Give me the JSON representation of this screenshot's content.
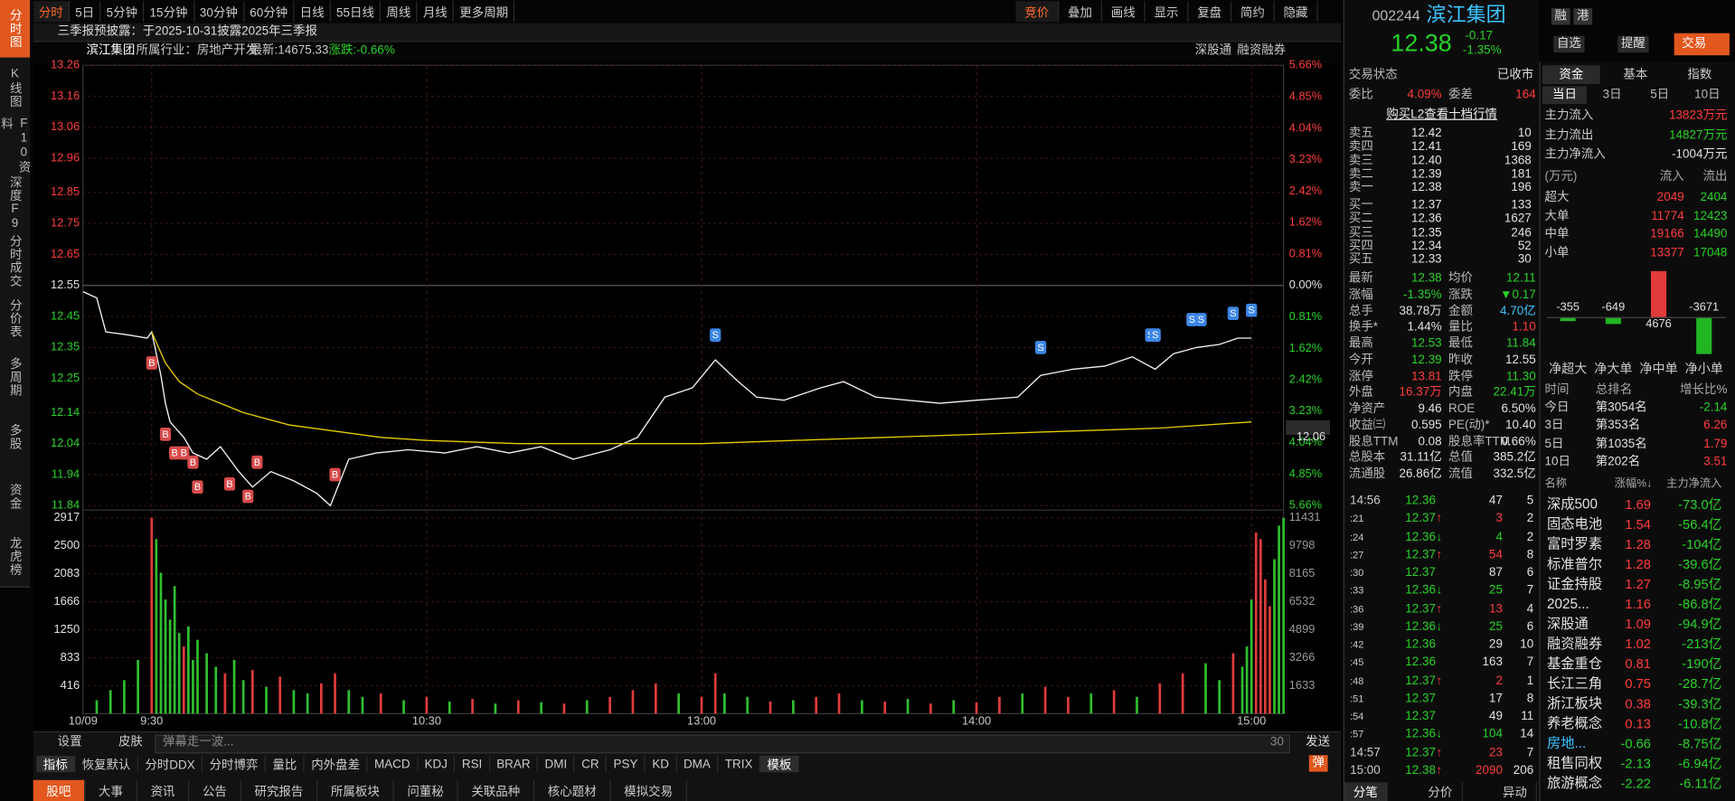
{
  "left_tabs": [
    "分时图",
    "K线图",
    "F10资料",
    "深度F9",
    "分时成交",
    "分价表",
    "多周期",
    "多股",
    "资金",
    "龙虎榜"
  ],
  "toolbar": {
    "periods": [
      "分时",
      "5日",
      "5分钟",
      "15分钟",
      "30分钟",
      "60分钟",
      "日线",
      "55日线",
      "周线",
      "月线",
      "更多周期"
    ],
    "tools": [
      "竞价",
      "叠加",
      "画线",
      "显示",
      "复盘",
      "简约",
      "隐藏"
    ]
  },
  "notice": "三季报预披露：于2025-10-31披露2025年三季报",
  "info": {
    "name": "滨江集团",
    "industry": "所属行业：房地产开发",
    "latest": "最新:14675.33",
    "change": "涨跌:-0.66%",
    "tags": [
      "深股通",
      "融资融券"
    ]
  },
  "chart_data": [
    {
      "type": "line",
      "xlim": [
        -15,
        247
      ],
      "xticks": [
        {
          "value": -15,
          "label": "10/09"
        },
        {
          "value": 0,
          "label": "9:30"
        },
        {
          "value": 60,
          "label": "10:30"
        },
        {
          "value": 120,
          "label": "13:00"
        },
        {
          "value": 180,
          "label": "14:00"
        },
        {
          "value": 240,
          "label": "15:00"
        }
      ],
      "ylim": [
        11.84,
        13.26
      ],
      "yticks": [
        13.26,
        13.16,
        13.06,
        12.96,
        12.85,
        12.75,
        12.65,
        12.55,
        12.45,
        12.35,
        12.25,
        12.14,
        12.04,
        11.94,
        11.84
      ],
      "y2lim": [
        -5.66,
        5.66
      ],
      "y2ticks": [
        {
          "value": 5.66,
          "label": "5.66%"
        },
        {
          "value": 4.85,
          "label": "4.85%"
        },
        {
          "value": 4.04,
          "label": "4.04%"
        },
        {
          "value": 3.23,
          "label": "3.23%"
        },
        {
          "value": 2.42,
          "label": "2.42%"
        },
        {
          "value": 1.62,
          "label": "1.62%"
        },
        {
          "value": 0.81,
          "label": "0.81%"
        },
        {
          "value": 0,
          "label": "0.00%"
        },
        {
          "value": -0.81,
          "label": "0.81%"
        },
        {
          "value": -1.62,
          "label": "1.62%"
        },
        {
          "value": -2.42,
          "label": "2.42%"
        },
        {
          "value": -3.23,
          "label": "3.23%"
        },
        {
          "value": -4.04,
          "label": "4.04%"
        },
        {
          "value": -4.85,
          "label": "4.85%"
        },
        {
          "value": -5.66,
          "label": "5.66%"
        }
      ],
      "grid": true,
      "series": [
        {
          "color": "#f2f2f2",
          "x": [
            -15,
            -12,
            -10,
            -5,
            -1,
            0,
            2,
            3,
            4,
            7,
            9,
            12,
            15,
            19,
            22,
            26,
            31,
            36,
            39,
            43,
            49,
            56,
            64,
            71,
            78,
            85,
            92,
            100,
            106,
            112,
            118,
            123,
            128,
            132,
            138,
            146,
            151,
            158,
            165,
            172,
            180,
            189,
            194,
            201,
            208,
            214,
            219,
            223,
            228,
            233,
            237,
            240
          ],
          "values": [
            12.53,
            12.51,
            12.4,
            12.39,
            12.38,
            12.4,
            12.26,
            12.17,
            12.11,
            12.06,
            12.01,
            11.99,
            12.03,
            11.95,
            11.9,
            11.95,
            11.92,
            11.88,
            11.84,
            11.99,
            12.01,
            12.02,
            12.01,
            12.03,
            12.01,
            12.03,
            11.99,
            12.02,
            12.06,
            12.19,
            12.22,
            12.31,
            12.24,
            12.19,
            12.18,
            12.22,
            12.24,
            12.19,
            12.18,
            12.17,
            12.18,
            12.19,
            12.26,
            12.28,
            12.29,
            12.32,
            12.28,
            12.33,
            12.35,
            12.36,
            12.38,
            12.38
          ]
        },
        {
          "color": "#e6cc00",
          "x": [
            0,
            3,
            6,
            10,
            15,
            20,
            30,
            40,
            50,
            60,
            80,
            100,
            120,
            140,
            160,
            180,
            200,
            220,
            240
          ],
          "values": [
            12.4,
            12.3,
            12.24,
            12.2,
            12.17,
            12.14,
            12.1,
            12.08,
            12.06,
            12.05,
            12.04,
            12.04,
            12.04,
            12.05,
            12.06,
            12.07,
            12.08,
            12.09,
            12.11
          ]
        }
      ],
      "avg_marker": 12.06,
      "markers": [
        {
          "x": 0,
          "y": 12.3,
          "label": "B",
          "color": "#d84b4b"
        },
        {
          "x": 3,
          "y": 12.07,
          "label": "B",
          "color": "#d84b4b"
        },
        {
          "x": 5,
          "y": 12.01,
          "label": "B",
          "color": "#d84b4b"
        },
        {
          "x": 7,
          "y": 12.01,
          "label": "B",
          "color": "#d84b4b"
        },
        {
          "x": 9,
          "y": 11.98,
          "label": "B",
          "color": "#d84b4b"
        },
        {
          "x": 10,
          "y": 11.9,
          "label": "B",
          "color": "#d84b4b"
        },
        {
          "x": 17,
          "y": 11.91,
          "label": "B",
          "color": "#d84b4b"
        },
        {
          "x": 21,
          "y": 11.87,
          "label": "B",
          "color": "#d84b4b"
        },
        {
          "x": 23,
          "y": 11.98,
          "label": "B",
          "color": "#d84b4b"
        },
        {
          "x": 40,
          "y": 11.94,
          "label": "B",
          "color": "#d84b4b"
        },
        {
          "x": 123,
          "y": 12.39,
          "label": "S",
          "color": "#3c86e6"
        },
        {
          "x": 194,
          "y": 12.35,
          "label": "S",
          "color": "#3c86e6"
        },
        {
          "x": 218,
          "y": 12.39,
          "label": "S",
          "color": "#3c86e6"
        },
        {
          "x": 219,
          "y": 12.39,
          "label": "S",
          "color": "#3c86e6"
        },
        {
          "x": 227,
          "y": 12.44,
          "label": "S",
          "color": "#3c86e6"
        },
        {
          "x": 229,
          "y": 12.44,
          "label": "S",
          "color": "#3c86e6"
        },
        {
          "x": 236,
          "y": 12.46,
          "label": "S",
          "color": "#3c86e6"
        },
        {
          "x": 240,
          "y": 12.47,
          "label": "S",
          "color": "#3c86e6"
        }
      ]
    },
    {
      "type": "bar",
      "ylim": [
        0,
        2917
      ],
      "yticks": [
        2917,
        2500,
        2083,
        1666,
        1250,
        833,
        416
      ],
      "y2lim": [
        0,
        11431
      ],
      "y2ticks": [
        11431,
        9798,
        8165,
        6532,
        4899,
        3266,
        1633
      ],
      "x": [
        -12,
        -9,
        -6,
        -3,
        0,
        1,
        2,
        3,
        4,
        5,
        6,
        7,
        8,
        9,
        10,
        12,
        14,
        16,
        18,
        20,
        22,
        25,
        28,
        31,
        34,
        37,
        40,
        43,
        46,
        50,
        55,
        60,
        65,
        70,
        75,
        80,
        85,
        90,
        95,
        100,
        105,
        110,
        115,
        120,
        123,
        125,
        130,
        135,
        140,
        145,
        150,
        155,
        160,
        165,
        170,
        175,
        180,
        185,
        190,
        195,
        200,
        205,
        210,
        215,
        220,
        225,
        230,
        233,
        236,
        238,
        239,
        240,
        241,
        242,
        243,
        244,
        245,
        246,
        247
      ],
      "values": [
        200,
        350,
        500,
        800,
        2917,
        2600,
        2100,
        1700,
        1400,
        1900,
        1200,
        1000,
        1300,
        800,
        1100,
        900,
        700,
        600,
        800,
        500,
        650,
        400,
        550,
        350,
        300,
        450,
        600,
        350,
        250,
        300,
        200,
        250,
        180,
        220,
        150,
        200,
        170,
        150,
        200,
        250,
        350,
        450,
        300,
        250,
        600,
        300,
        250,
        180,
        200,
        250,
        300,
        200,
        180,
        220,
        150,
        200,
        170,
        250,
        300,
        400,
        250,
        300,
        350,
        250,
        450,
        600,
        750,
        500,
        900,
        700,
        1000,
        1700,
        2700,
        2600,
        2000,
        1600,
        2300,
        2800,
        2917
      ],
      "colors": [
        "#2fbf2f",
        "#2fbf2f",
        "#2fbf2f",
        "#2fbf2f",
        "#e03c3c",
        "#2fbf2f",
        "#2fbf2f",
        "#2fbf2f",
        "#2fbf2f",
        "#2fbf2f",
        "#2fbf2f",
        "#e03c3c",
        "#2fbf2f",
        "#2fbf2f",
        "#2fbf2f",
        "#2fbf2f",
        "#2fbf2f",
        "#e03c3c",
        "#2fbf2f",
        "#2fbf2f",
        "#e03c3c",
        "#2fbf2f",
        "#e03c3c",
        "#2fbf2f",
        "#2fbf2f",
        "#e03c3c",
        "#e03c3c",
        "#2fbf2f",
        "#2fbf2f",
        "#e03c3c",
        "#2fbf2f",
        "#e03c3c",
        "#2fbf2f",
        "#e03c3c",
        "#2fbf2f",
        "#e03c3c",
        "#2fbf2f",
        "#e03c3c",
        "#2fbf2f",
        "#e03c3c",
        "#e03c3c",
        "#e03c3c",
        "#2fbf2f",
        "#e03c3c",
        "#e03c3c",
        "#2fbf2f",
        "#2fbf2f",
        "#e03c3c",
        "#2fbf2f",
        "#e03c3c",
        "#e03c3c",
        "#2fbf2f",
        "#e03c3c",
        "#2fbf2f",
        "#e03c3c",
        "#2fbf2f",
        "#e03c3c",
        "#e03c3c",
        "#2fbf2f",
        "#e03c3c",
        "#e03c3c",
        "#2fbf2f",
        "#e03c3c",
        "#2fbf2f",
        "#e03c3c",
        "#e03c3c",
        "#2fbf2f",
        "#2fbf2f",
        "#e03c3c",
        "#2fbf2f",
        "#2fbf2f",
        "#2fbf2f",
        "#e03c3c",
        "#e03c3c",
        "#e03c3c",
        "#e03c3c",
        "#2fbf2f",
        "#2fbf2f",
        "#2fbf2f"
      ]
    },
    {
      "type": "bar",
      "categories": [
        "净超大",
        "净大单",
        "净中单",
        "净小单"
      ],
      "values": [
        -355,
        -649,
        4676,
        -3671
      ],
      "colors": {
        "up": "#e23b3b",
        "down": "#22b522"
      }
    }
  ],
  "bottom_bar": {
    "settings": "设置",
    "skin": "皮肤",
    "placeholder": "弹幕走一波...",
    "count": "30",
    "send": "发送"
  },
  "indicators": [
    "指标",
    "恢复默认",
    "分时DDX",
    "分时博弈",
    "量比",
    "内外盘差",
    "MACD",
    "KDJ",
    "RSI",
    "BRAR",
    "DMI",
    "CR",
    "PSY",
    "KD",
    "DMA",
    "TRIX",
    "模板"
  ],
  "danmu_toggle": "弹",
  "bottom_tabs": [
    "股吧",
    "大事",
    "资讯",
    "公告",
    "研究报告",
    "所属板块",
    "问董秘",
    "关联品种",
    "核心题材",
    "模拟交易"
  ],
  "quote": {
    "code": "002244",
    "name": "滨江集团",
    "badges": [
      "融",
      "港"
    ],
    "price": "12.38",
    "change": "-0.17",
    "pct": "-1.35%",
    "buttons": [
      "自选",
      "提醒",
      "交易"
    ],
    "status_label": "交易状态",
    "status": "已收市",
    "wb_label": "委比",
    "wb": "4.09%",
    "wc_label": "委差",
    "wc": "164",
    "l2_link": "购买L2查看十档行情",
    "asks": [
      [
        "卖五",
        "12.42",
        "10"
      ],
      [
        "卖四",
        "12.41",
        "169"
      ],
      [
        "卖三",
        "12.40",
        "1368"
      ],
      [
        "卖二",
        "12.39",
        "181"
      ],
      [
        "卖一",
        "12.38",
        "196"
      ]
    ],
    "bids": [
      [
        "买一",
        "12.37",
        "133"
      ],
      [
        "买二",
        "12.36",
        "1627"
      ],
      [
        "买三",
        "12.35",
        "246"
      ],
      [
        "买四",
        "12.34",
        "52"
      ],
      [
        "买五",
        "12.33",
        "30"
      ]
    ],
    "stats": [
      [
        "最新",
        "12.38",
        "均价",
        "12.11"
      ],
      [
        "涨幅",
        "-1.35%",
        "涨跌",
        "▼0.17"
      ],
      [
        "总手",
        "38.78万",
        "金额",
        "4.70亿"
      ],
      [
        "换手*",
        "1.44%",
        "量比",
        "1.10"
      ],
      [
        "最高",
        "12.53",
        "最低",
        "11.84"
      ],
      [
        "今开",
        "12.39",
        "昨收",
        "12.55"
      ],
      [
        "涨停",
        "13.81",
        "跌停",
        "11.30"
      ],
      [
        "外盘",
        "16.37万",
        "内盘",
        "22.41万"
      ],
      [
        "净资产",
        "9.46",
        "ROE",
        "6.50%"
      ],
      [
        "收益㈢",
        "0.595",
        "PE(动)*",
        "10.40"
      ],
      [
        "股息TTM",
        "0.08",
        "股息率TTM",
        "0.66%"
      ],
      [
        "总股本",
        "31.11亿",
        "总值",
        "385.2亿"
      ],
      [
        "流通股",
        "26.86亿",
        "流值",
        "332.5亿"
      ]
    ],
    "trades": [
      {
        "t": "14:56",
        "p": "12.36",
        "v": "47",
        "n": "5"
      },
      {
        "t": ":21",
        "p": "12.37",
        "a": "↑",
        "v": "3",
        "n": "2"
      },
      {
        "t": ":24",
        "p": "12.36",
        "a": "↓",
        "v": "4",
        "n": "2"
      },
      {
        "t": ":27",
        "p": "12.37",
        "a": "↑",
        "v": "54",
        "n": "8"
      },
      {
        "t": ":30",
        "p": "12.37",
        "v": "87",
        "n": "6"
      },
      {
        "t": ":33",
        "p": "12.36",
        "a": "↓",
        "v": "25",
        "n": "7"
      },
      {
        "t": ":36",
        "p": "12.37",
        "a": "↑",
        "v": "13",
        "n": "4"
      },
      {
        "t": ":39",
        "p": "12.36",
        "a": "↓",
        "v": "25",
        "n": "6"
      },
      {
        "t": ":42",
        "p": "12.36",
        "v": "29",
        "n": "10"
      },
      {
        "t": ":45",
        "p": "12.36",
        "v": "163",
        "n": "7"
      },
      {
        "t": ":48",
        "p": "12.37",
        "a": "↑",
        "v": "2",
        "n": "1"
      },
      {
        "t": ":51",
        "p": "12.37",
        "v": "17",
        "n": "8"
      },
      {
        "t": ":54",
        "p": "12.37",
        "v": "49",
        "n": "11"
      },
      {
        "t": ":57",
        "p": "12.36",
        "a": "↓",
        "v": "104",
        "n": "14"
      },
      {
        "t": "14:57",
        "p": "12.37",
        "a": "↑",
        "v": "23",
        "n": "7"
      },
      {
        "t": "15:00",
        "p": "12.38",
        "a": "↑",
        "v": "2090",
        "n": "206"
      }
    ],
    "tabs": [
      "分笔",
      "分价",
      "异动"
    ]
  },
  "fund": {
    "tabs": [
      "资金",
      "基本",
      "指数"
    ],
    "periods": [
      "当日",
      "3日",
      "5日",
      "10日"
    ],
    "main": [
      [
        "主力流入",
        "13823万元"
      ],
      [
        "主力流出",
        "14827万元"
      ],
      [
        "主力净流入",
        "-1004万元"
      ]
    ],
    "table_header": [
      "(万元)",
      "流入",
      "流出"
    ],
    "table": [
      [
        "超大",
        "2049",
        "2404"
      ],
      [
        "大单",
        "11774",
        "12423"
      ],
      [
        "中单",
        "19166",
        "14490"
      ],
      [
        "小单",
        "13377",
        "17048"
      ]
    ],
    "rank_header": [
      "时间",
      "总排名",
      "增长比%"
    ],
    "rank": [
      [
        "今日",
        "第3054名",
        "-2.14"
      ],
      [
        "3日",
        "第353名",
        "6.26"
      ],
      [
        "5日",
        "第1035名",
        "1.79"
      ],
      [
        "10日",
        "第202名",
        "3.51"
      ]
    ],
    "sector_header": [
      "名称",
      "涨幅%↓",
      "主力净流入"
    ],
    "sectors": [
      [
        "深成500",
        "1.69",
        "-73.0亿"
      ],
      [
        "固态电池",
        "1.54",
        "-56.4亿"
      ],
      [
        "富时罗素",
        "1.28",
        "-104亿"
      ],
      [
        "标准普尔",
        "1.28",
        "-39.6亿"
      ],
      [
        "证金持股",
        "1.27",
        "-8.95亿"
      ],
      [
        "2025...",
        "1.16",
        "-86.8亿"
      ],
      [
        "深股通",
        "1.09",
        "-94.9亿"
      ],
      [
        "融资融券",
        "1.02",
        "-213亿"
      ],
      [
        "基金重仓",
        "0.81",
        "-190亿"
      ],
      [
        "长江三角",
        "0.75",
        "-28.7亿"
      ],
      [
        "浙江板块",
        "0.38",
        "-39.3亿"
      ],
      [
        "养老概念",
        "0.13",
        "-10.8亿"
      ],
      [
        "房地...",
        "-0.66",
        "-8.75亿"
      ],
      [
        "租售同权",
        "-2.13",
        "-6.94亿"
      ],
      [
        "旅游概念",
        "-2.22",
        "-6.11亿"
      ]
    ]
  }
}
